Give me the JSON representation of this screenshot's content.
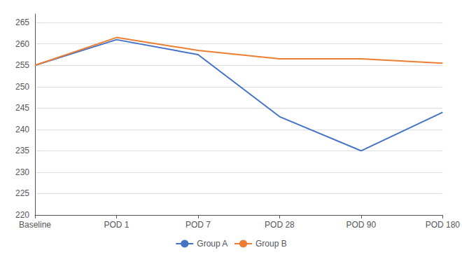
{
  "chart_data": {
    "type": "line",
    "categories": [
      "Baseline",
      "POD 1",
      "POD 7",
      "POD 28",
      "POD 90",
      "POD 180"
    ],
    "series": [
      {
        "name": "Group A",
        "color": "#4472C4",
        "values": [
          255.0,
          261.0,
          257.5,
          243.0,
          235.0,
          244.0
        ]
      },
      {
        "name": "Group B",
        "color": "#ED7D31",
        "values": [
          255.0,
          261.5,
          258.5,
          256.5,
          256.5,
          255.5
        ]
      }
    ],
    "ylim": [
      220,
      267
    ],
    "yticks": [
      220,
      225,
      230,
      235,
      240,
      245,
      250,
      255,
      260,
      265
    ],
    "grid": true,
    "legend": "bottom",
    "marker": "none"
  }
}
